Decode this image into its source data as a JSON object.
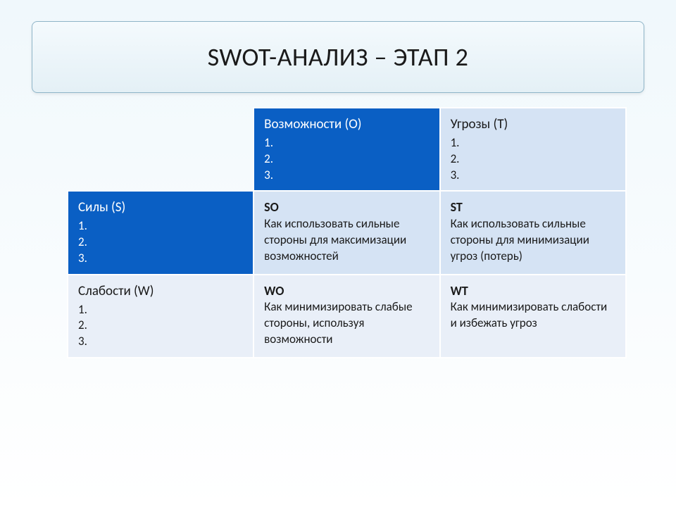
{
  "slide": {
    "title": "SWOT-АНАЛИЗ – ЭТАП 2"
  },
  "matrix": {
    "type": "table",
    "colors": {
      "header_blue": "#0a5fc4",
      "header_light": "#d5e3f4",
      "side_light": "#e9eff8",
      "body_row1": "#d5e3f4",
      "body_row2": "#e9eff8",
      "text_on_blue": "#ffffff",
      "text_on_light": "#1a1a1a",
      "border": "#ffffff"
    },
    "col_headers": {
      "opportunities": {
        "title": "Возможности (O)",
        "list": "1.\n2.\n3."
      },
      "threats": {
        "title": "Угрозы (T)",
        "list": "1.\n2.\n3."
      }
    },
    "row_headers": {
      "strengths": {
        "title": "Силы (S)",
        "list": "1.\n2.\n3."
      },
      "weaknesses": {
        "title": "Слабости (W)",
        "list": "1.\n2.\n3."
      }
    },
    "cells": {
      "so": {
        "code": "SO",
        "body": "Как использовать сильные стороны для максимизации возможностей"
      },
      "st": {
        "code": "ST",
        "body": "Как использовать сильные стороны для минимизации угроз (потерь)"
      },
      "wo": {
        "code": "WO",
        "body": "Как минимизировать слабые стороны, используя возможности"
      },
      "wt": {
        "code": "WT",
        "body": "Как минимизировать слабости и избежать угроз"
      }
    }
  }
}
